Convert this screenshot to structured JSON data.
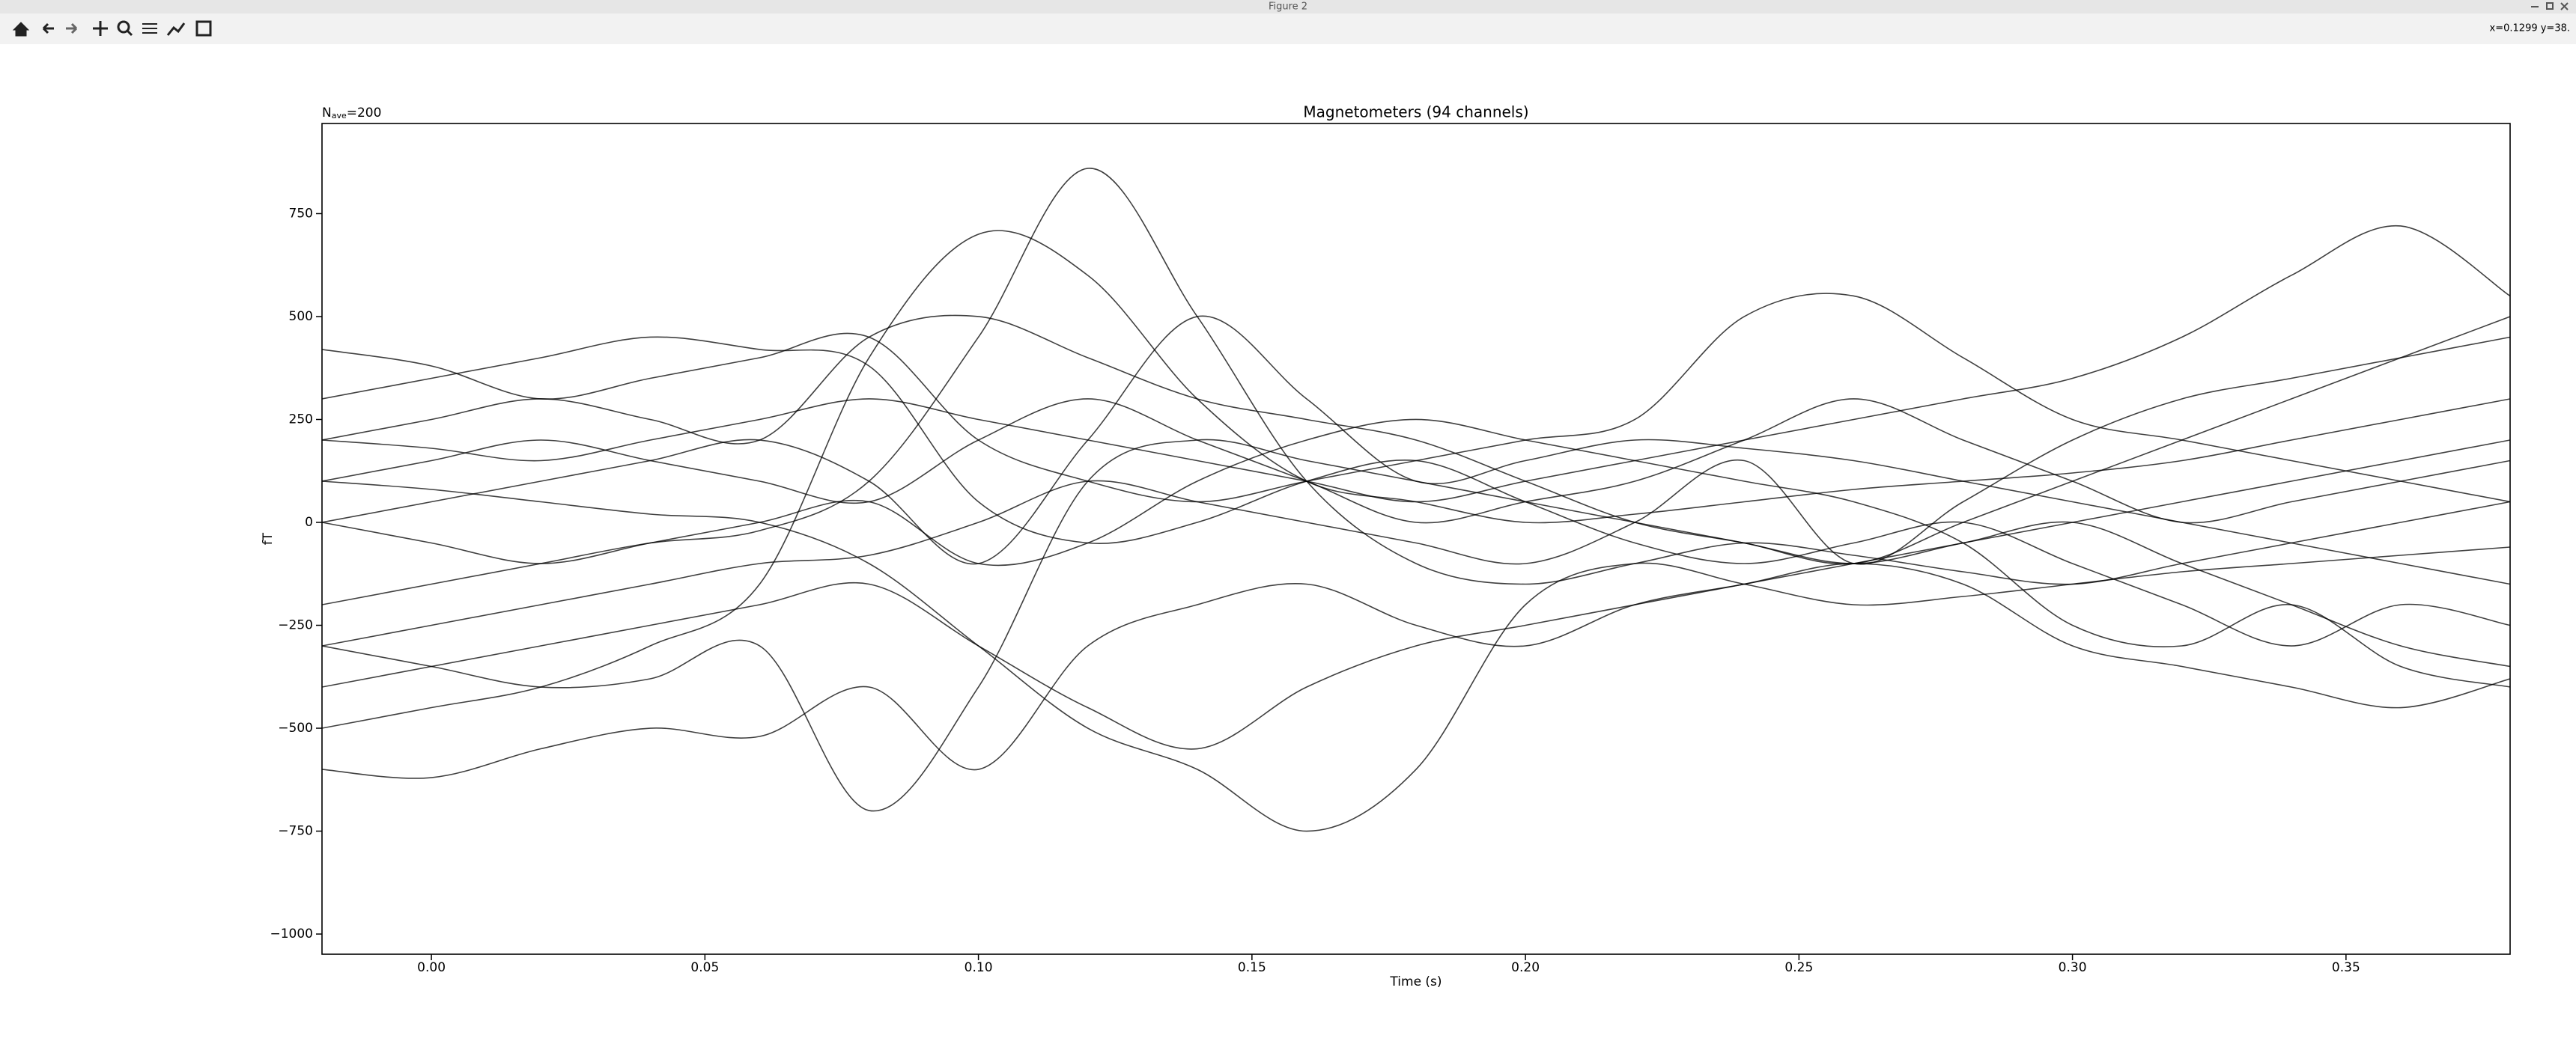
{
  "window": {
    "title": "Figure 2",
    "coordinates": "x=0.1299 y=38."
  },
  "chart_data": {
    "type": "line",
    "title": "Magnetometers (94 channels)",
    "annotation": {
      "prefix": "N",
      "subscript": "ave",
      "suffix": "=200"
    },
    "x_label": "Time (s)",
    "y_label": "fT",
    "color": "#000000",
    "xlim": [
      -0.02,
      0.38
    ],
    "ylim": [
      -1049,
      969
    ],
    "xticks": [
      {
        "value": 0,
        "label": "0.00"
      },
      {
        "value": 0.05,
        "label": "0.05"
      },
      {
        "value": 0.1,
        "label": "0.10"
      },
      {
        "value": 0.15,
        "label": "0.15"
      },
      {
        "value": 0.2,
        "label": "0.20"
      },
      {
        "value": 0.25,
        "label": "0.25"
      },
      {
        "value": 0.3,
        "label": "0.30"
      },
      {
        "value": 0.35,
        "label": "0.35"
      }
    ],
    "yticks": [
      {
        "value": -1000,
        "label": "−1000"
      },
      {
        "value": -750,
        "label": "−750"
      },
      {
        "value": -500,
        "label": "−500"
      },
      {
        "value": -250,
        "label": "−250"
      },
      0,
      250,
      500,
      750
    ],
    "x": [
      -0.02,
      0,
      0.02,
      0.04,
      0.06,
      0.08,
      0.1,
      0.12,
      0.14,
      0.16,
      0.18,
      0.2,
      0.22,
      0.24,
      0.26,
      0.28,
      0.3,
      0.32,
      0.34,
      0.36,
      0.38
    ],
    "series": [
      {
        "values": [
          -200,
          -150,
          -100,
          -50,
          -20,
          100,
          450,
          860,
          500,
          100,
          -100,
          -150,
          -100,
          -50,
          -80,
          -120,
          -150,
          -100,
          -50,
          0,
          50
        ]
      },
      {
        "values": [
          -300,
          -350,
          -400,
          -380,
          -300,
          -700,
          -400,
          100,
          200,
          150,
          100,
          50,
          0,
          -50,
          -100,
          -50,
          0,
          50,
          100,
          150,
          200
        ]
      },
      {
        "values": [
          100,
          80,
          50,
          20,
          0,
          -100,
          -300,
          -500,
          -600,
          -750,
          -600,
          -200,
          -100,
          -150,
          -200,
          -180,
          -150,
          -120,
          -100,
          -80,
          -60
        ]
      },
      {
        "values": [
          -500,
          -450,
          -400,
          -300,
          -150,
          400,
          700,
          600,
          300,
          100,
          50,
          0,
          20,
          50,
          80,
          100,
          120,
          150,
          200,
          250,
          300
        ]
      },
      {
        "values": [
          0,
          50,
          100,
          150,
          200,
          100,
          -100,
          200,
          500,
          300,
          100,
          150,
          200,
          180,
          150,
          100,
          50,
          0,
          -50,
          -100,
          -150
        ]
      },
      {
        "values": [
          200,
          180,
          150,
          200,
          250,
          300,
          250,
          200,
          150,
          100,
          50,
          100,
          150,
          200,
          250,
          300,
          350,
          450,
          600,
          720,
          550
        ]
      },
      {
        "values": [
          420,
          380,
          300,
          350,
          400,
          450,
          200,
          100,
          50,
          100,
          150,
          200,
          250,
          500,
          550,
          400,
          250,
          200,
          150,
          100,
          50
        ]
      },
      {
        "values": [
          -600,
          -620,
          -550,
          -500,
          -520,
          -400,
          -600,
          -300,
          -200,
          -150,
          -250,
          -300,
          -200,
          -150,
          -100,
          -150,
          -300,
          -350,
          -400,
          -450,
          -380
        ]
      },
      {
        "values": [
          300,
          350,
          400,
          450,
          420,
          380,
          50,
          -50,
          0,
          100,
          150,
          50,
          -50,
          -100,
          -50,
          0,
          -100,
          -200,
          -300,
          -200,
          -250
        ]
      },
      {
        "values": [
          -300,
          -250,
          -200,
          -150,
          -100,
          -80,
          0,
          100,
          50,
          0,
          -50,
          -100,
          0,
          150,
          -100,
          50,
          200,
          300,
          350,
          400,
          450
        ]
      },
      {
        "values": [
          0,
          -50,
          -100,
          -50,
          0,
          50,
          -100,
          -50,
          100,
          200,
          250,
          200,
          150,
          100,
          50,
          -50,
          -250,
          -300,
          -200,
          -350,
          -400
        ]
      },
      {
        "values": [
          100,
          150,
          200,
          150,
          100,
          50,
          200,
          300,
          200,
          100,
          0,
          50,
          100,
          200,
          300,
          200,
          100,
          0,
          50,
          100,
          150
        ]
      },
      {
        "values": [
          -400,
          -350,
          -300,
          -250,
          -200,
          -150,
          -300,
          -450,
          -550,
          -400,
          -300,
          -250,
          -200,
          -150,
          -100,
          -50,
          0,
          -100,
          -200,
          -300,
          -350
        ]
      },
      {
        "values": [
          200,
          250,
          300,
          250,
          200,
          450,
          500,
          400,
          300,
          250,
          200,
          100,
          0,
          -50,
          -100,
          0,
          100,
          200,
          300,
          400,
          500
        ]
      }
    ]
  }
}
